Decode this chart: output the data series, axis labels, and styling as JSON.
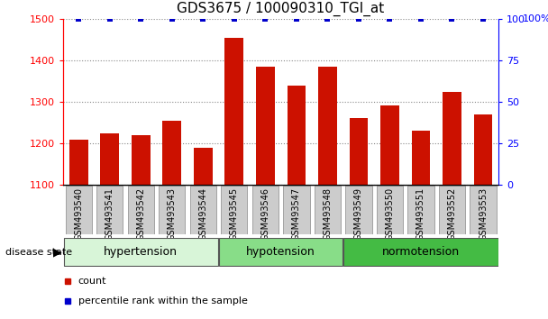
{
  "title": "GDS3675 / 100090310_TGI_at",
  "samples": [
    "GSM493540",
    "GSM493541",
    "GSM493542",
    "GSM493543",
    "GSM493544",
    "GSM493545",
    "GSM493546",
    "GSM493547",
    "GSM493548",
    "GSM493549",
    "GSM493550",
    "GSM493551",
    "GSM493552",
    "GSM493553"
  ],
  "counts": [
    1210,
    1225,
    1220,
    1255,
    1190,
    1455,
    1385,
    1340,
    1385,
    1262,
    1293,
    1232,
    1325,
    1270
  ],
  "percentiles": [
    100,
    100,
    100,
    100,
    100,
    100,
    100,
    100,
    100,
    100,
    100,
    100,
    100,
    100
  ],
  "groups": [
    {
      "label": "hypertension",
      "start": 0,
      "end": 5,
      "color": "#d8f5d8"
    },
    {
      "label": "hypotension",
      "start": 5,
      "end": 9,
      "color": "#88dd88"
    },
    {
      "label": "normotension",
      "start": 9,
      "end": 14,
      "color": "#44bb44"
    }
  ],
  "ylim_left": [
    1100,
    1500
  ],
  "ylim_right": [
    0,
    100
  ],
  "yticks_left": [
    1100,
    1200,
    1300,
    1400,
    1500
  ],
  "yticks_right": [
    0,
    25,
    50,
    75,
    100
  ],
  "bar_color": "#cc1100",
  "percentile_color": "#0000cc",
  "grid_color": "#888888",
  "title_fontsize": 11,
  "tick_fontsize": 8,
  "label_fontsize": 9,
  "legend_fontsize": 8
}
